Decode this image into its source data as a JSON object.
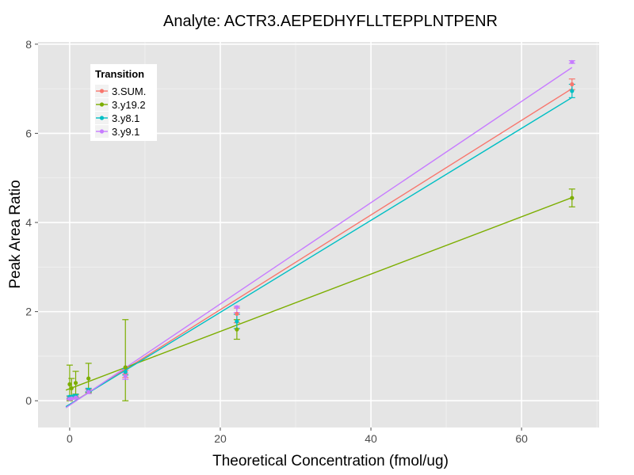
{
  "chart_data": {
    "type": "scatter",
    "title": "Analyte: ACTR3.AEPEDHYFLLTEPPLNTPENR",
    "xlabel": "Theoretical Concentration (fmol/ug)",
    "ylabel": "Peak Area Ratio",
    "xlim": [
      -4.2,
      70.3
    ],
    "ylim": [
      -0.6,
      8.05
    ],
    "x_ticks": [
      0,
      20,
      40,
      60
    ],
    "x_tick_labels": [
      "0",
      "20",
      "40",
      "60"
    ],
    "y_ticks": [
      0,
      2,
      4,
      6,
      8
    ],
    "y_tick_labels": [
      "0",
      "2",
      "4",
      "6",
      "8"
    ],
    "grid": true,
    "legend": {
      "title": "Transition",
      "position": "top-left"
    },
    "series": [
      {
        "name": "3.SUM.",
        "color": "#F8766D",
        "points": [
          {
            "x": 0,
            "y": 0.06,
            "lo": 0.03,
            "hi": 0.09
          },
          {
            "x": 0.25,
            "y": 0.07,
            "lo": 0.05,
            "hi": 0.09
          },
          {
            "x": 0.8,
            "y": 0.09,
            "lo": 0.07,
            "hi": 0.11
          },
          {
            "x": 2.5,
            "y": 0.23,
            "lo": 0.2,
            "hi": 0.26
          },
          {
            "x": 7.4,
            "y": 0.6,
            "lo": 0.52,
            "hi": 0.68
          },
          {
            "x": 22.2,
            "y": 1.95,
            "lo": 1.75,
            "hi": 2.08
          },
          {
            "x": 66.7,
            "y": 7.1,
            "lo": 6.98,
            "hi": 7.22
          }
        ],
        "fit": {
          "slope": 0.1062,
          "intercept": -0.08
        }
      },
      {
        "name": "3.y19.2",
        "color": "#7CAE00",
        "points": [
          {
            "x": 0,
            "y": 0.37,
            "lo": 0.0,
            "hi": 0.8
          },
          {
            "x": 0.25,
            "y": 0.28,
            "lo": 0.05,
            "hi": 0.5
          },
          {
            "x": 0.8,
            "y": 0.4,
            "lo": 0.15,
            "hi": 0.66
          },
          {
            "x": 2.5,
            "y": 0.5,
            "lo": 0.18,
            "hi": 0.84
          },
          {
            "x": 7.4,
            "y": 0.75,
            "lo": 0.0,
            "hi": 1.82
          },
          {
            "x": 22.2,
            "y": 1.6,
            "lo": 1.38,
            "hi": 1.82
          },
          {
            "x": 66.7,
            "y": 4.55,
            "lo": 4.35,
            "hi": 4.75
          }
        ],
        "fit": {
          "slope": 0.0643,
          "intercept": 0.27
        }
      },
      {
        "name": "3.y8.1",
        "color": "#00BFC4",
        "points": [
          {
            "x": 0,
            "y": 0.08,
            "lo": 0.05,
            "hi": 0.11
          },
          {
            "x": 0.25,
            "y": 0.09,
            "lo": 0.06,
            "hi": 0.12
          },
          {
            "x": 0.8,
            "y": 0.11,
            "lo": 0.08,
            "hi": 0.14
          },
          {
            "x": 2.5,
            "y": 0.24,
            "lo": 0.2,
            "hi": 0.28
          },
          {
            "x": 7.4,
            "y": 0.65,
            "lo": 0.58,
            "hi": 0.72
          },
          {
            "x": 22.2,
            "y": 1.78,
            "lo": 1.62,
            "hi": 1.94
          },
          {
            "x": 66.7,
            "y": 6.95,
            "lo": 6.8,
            "hi": 7.1
          }
        ],
        "fit": {
          "slope": 0.1032,
          "intercept": -0.08
        }
      },
      {
        "name": "3.y9.1",
        "color": "#C77CFF",
        "points": [
          {
            "x": 0,
            "y": 0.04,
            "lo": 0.02,
            "hi": 0.06
          },
          {
            "x": 0.25,
            "y": 0.05,
            "lo": 0.03,
            "hi": 0.07
          },
          {
            "x": 0.8,
            "y": 0.07,
            "lo": 0.05,
            "hi": 0.09
          },
          {
            "x": 2.5,
            "y": 0.2,
            "lo": 0.16,
            "hi": 0.24
          },
          {
            "x": 7.4,
            "y": 0.55,
            "lo": 0.48,
            "hi": 0.62
          },
          {
            "x": 22.2,
            "y": 2.1,
            "lo": 1.98,
            "hi": 2.12
          },
          {
            "x": 66.7,
            "y": 7.6,
            "lo": 7.57,
            "hi": 7.63
          }
        ],
        "fit": {
          "slope": 0.1136,
          "intercept": -0.1
        }
      }
    ]
  }
}
